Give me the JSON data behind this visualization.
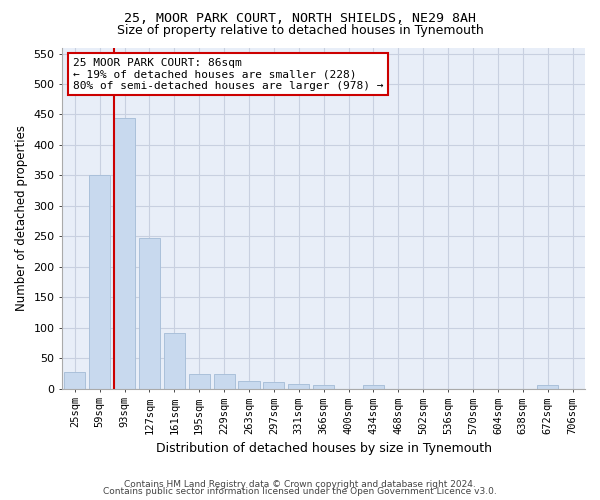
{
  "title1": "25, MOOR PARK COURT, NORTH SHIELDS, NE29 8AH",
  "title2": "Size of property relative to detached houses in Tynemouth",
  "xlabel": "Distribution of detached houses by size in Tynemouth",
  "ylabel": "Number of detached properties",
  "categories": [
    "25sqm",
    "59sqm",
    "93sqm",
    "127sqm",
    "161sqm",
    "195sqm",
    "229sqm",
    "263sqm",
    "297sqm",
    "331sqm",
    "366sqm",
    "400sqm",
    "434sqm",
    "468sqm",
    "502sqm",
    "536sqm",
    "570sqm",
    "604sqm",
    "638sqm",
    "672sqm",
    "706sqm"
  ],
  "values": [
    27,
    350,
    445,
    248,
    92,
    24,
    24,
    13,
    10,
    7,
    6,
    0,
    5,
    0,
    0,
    0,
    0,
    0,
    0,
    5,
    0
  ],
  "bar_color": "#c8d9ee",
  "bar_edge_color": "#aac0da",
  "grid_color": "#c8d0e0",
  "background_color": "#e8eef8",
  "vline_color": "#cc0000",
  "vline_pos": 1.575,
  "annotation_text": "25 MOOR PARK COURT: 86sqm\n← 19% of detached houses are smaller (228)\n80% of semi-detached houses are larger (978) →",
  "annotation_box_color": "#ffffff",
  "annotation_box_edge": "#cc0000",
  "ylim": [
    0,
    560
  ],
  "yticks": [
    0,
    50,
    100,
    150,
    200,
    250,
    300,
    350,
    400,
    450,
    500,
    550
  ],
  "footer1": "Contains HM Land Registry data © Crown copyright and database right 2024.",
  "footer2": "Contains public sector information licensed under the Open Government Licence v3.0."
}
